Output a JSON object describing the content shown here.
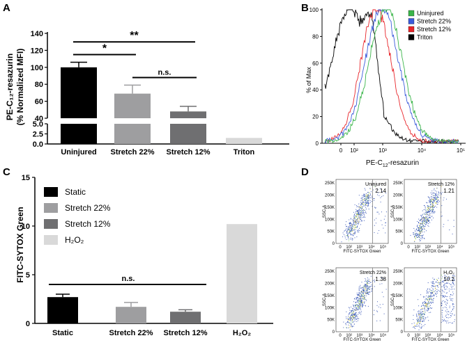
{
  "chart_data": [
    {
      "panel": "A",
      "type": "bar",
      "ylabel": "PE-C₁₂-resazurin",
      "ylabel2": "(% Normalized MFI)",
      "categories": [
        "Uninjured",
        "Stretch 22%",
        "Stretch 12%",
        "Triton"
      ],
      "values": [
        100,
        69,
        48,
        1.5
      ],
      "errors": [
        6,
        10,
        6,
        0
      ],
      "colors": [
        "#000000",
        "#9e9ea0",
        "#6f6f71",
        "#d9d9d9"
      ],
      "y_axis_upper": {
        "range": [
          40,
          140
        ],
        "ticks": [
          "40",
          "60",
          "80",
          "100",
          "120",
          "140"
        ]
      },
      "y_axis_lower": {
        "range": [
          0,
          5
        ],
        "ticks": [
          "0.0",
          "2.5",
          "5.0"
        ]
      },
      "significance": [
        {
          "from": "Uninjured",
          "to": "Stretch 22%",
          "label": "*"
        },
        {
          "from": "Uninjured",
          "to": "Stretch 12%",
          "label": "**"
        },
        {
          "from": "Stretch 22%",
          "to": "Stretch 12%",
          "label": "n.s."
        }
      ]
    },
    {
      "panel": "B",
      "type": "line",
      "xlabel_main": "PE-C",
      "xlabel_sub": "12",
      "xlabel_tail": "-resazurin",
      "ylabel": "% of Max",
      "x_ticks": [
        "0",
        "10²",
        "10³",
        "10⁴",
        "10⁵"
      ],
      "y_ticks": [
        "0",
        "20",
        "40",
        "60",
        "80",
        "100"
      ],
      "legend": [
        {
          "name": "Uninjured",
          "color": "#3bb54a"
        },
        {
          "name": "Stretch 22%",
          "color": "#3b5bdb"
        },
        {
          "name": "Stretch 12%",
          "color": "#e8252a"
        },
        {
          "name": "Triton",
          "color": "#000000"
        }
      ],
      "series": [
        {
          "name": "Uninjured",
          "color": "#3bb54a",
          "peak_log": 3.25,
          "width": 0.42
        },
        {
          "name": "Stretch 22%",
          "color": "#3b5bdb",
          "peak_log": 3.15,
          "width": 0.42
        },
        {
          "name": "Stretch 12%",
          "color": "#e8252a",
          "peak_log": 3.0,
          "width": 0.38
        },
        {
          "name": "Triton",
          "color": "#000000",
          "peak_log": 2.35,
          "width": 0.48
        }
      ]
    },
    {
      "panel": "C",
      "type": "bar",
      "ylabel": "FITC-SYTOX Green",
      "categories": [
        "Static",
        "Stretch 22%",
        "Stretch 12%",
        "H₂O₂"
      ],
      "values": [
        2.7,
        1.7,
        1.2,
        10.2
      ],
      "errors": [
        0.3,
        0.45,
        0.2,
        0
      ],
      "colors": [
        "#000000",
        "#9e9ea0",
        "#6f6f71",
        "#d9d9d9"
      ],
      "ylim": [
        0,
        15
      ],
      "y_ticks": [
        "0",
        "5",
        "10",
        "15"
      ],
      "legend": [
        {
          "name": "Static",
          "color": "#000000"
        },
        {
          "name": "Stretch 22%",
          "color": "#9e9ea0"
        },
        {
          "name": "Stretch 12%",
          "color": "#6f6f71"
        },
        {
          "name": "H₂O₂",
          "color": "#d9d9d9"
        }
      ],
      "significance": [
        {
          "from": "Static",
          "to": "Stretch 12%",
          "label": "n.s."
        }
      ]
    },
    {
      "panel": "D",
      "type": "scatter",
      "xlabel": "FITC-SYTOX Green",
      "ylabel": "SSC-A",
      "x_ticks": [
        "0",
        "10²",
        "10³",
        "10⁴",
        "10⁵"
      ],
      "y_ticks": [
        "0",
        "50K",
        "100K",
        "150K",
        "200K",
        "250K"
      ],
      "plots": [
        {
          "label": "Uninjured",
          "value": "2.14"
        },
        {
          "label": "Stretch 12%",
          "value": "1.21"
        },
        {
          "label": "Stretch 22%",
          "value": "1.38"
        },
        {
          "label": "H₂O₂",
          "value": "10.2"
        }
      ]
    }
  ],
  "panel_labels": {
    "a": "A",
    "b": "B",
    "c": "C",
    "d": "D"
  }
}
